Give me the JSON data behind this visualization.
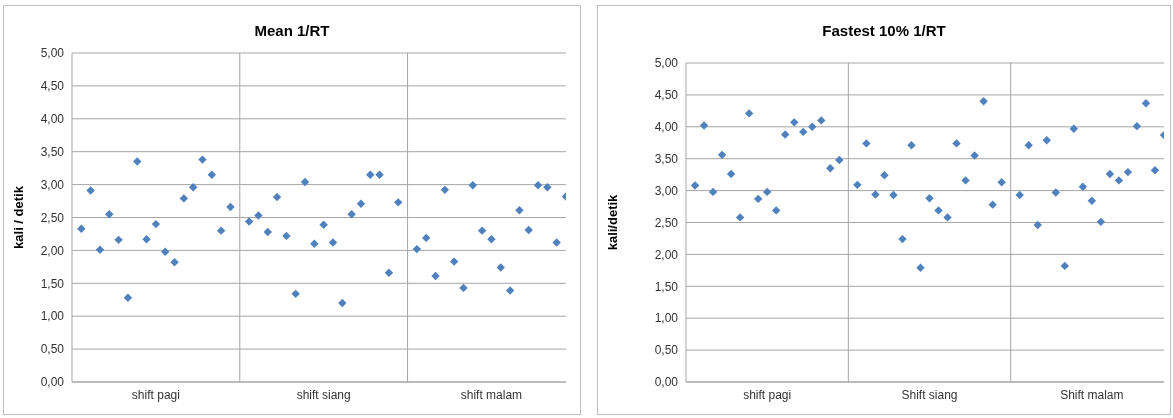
{
  "chart_data": [
    {
      "type": "scatter",
      "title": "Mean 1/RT",
      "ylabel": "kali / detik",
      "categories": [
        null,
        null,
        null,
        null,
        null,
        null,
        null,
        null,
        "shift pagi",
        null,
        null,
        null,
        null,
        null,
        null,
        null,
        null,
        null,
        null,
        null,
        null,
        null,
        null,
        null,
        null,
        null,
        "shift siang",
        null,
        null,
        null,
        null,
        null,
        null,
        null,
        null,
        null,
        null,
        null,
        null,
        null,
        null,
        null,
        null,
        null,
        "shift malam",
        null,
        null,
        null,
        null,
        null,
        null,
        null,
        null
      ],
      "series": [
        {
          "color": "#4f81bd",
          "values": [
            2.33,
            2.91,
            2.01,
            2.55,
            2.16,
            1.28,
            3.35,
            2.17,
            2.4,
            1.98,
            1.82,
            2.79,
            2.96,
            3.38,
            3.15,
            2.3,
            2.66,
            null,
            2.44,
            2.53,
            2.28,
            2.81,
            2.22,
            1.34,
            3.04,
            2.1,
            2.39,
            2.12,
            1.2,
            2.55,
            2.71,
            3.15,
            3.15,
            1.66,
            2.73,
            null,
            2.02,
            2.19,
            1.61,
            2.92,
            1.83,
            1.43,
            2.99,
            2.3,
            2.17,
            1.74,
            1.39,
            2.61,
            2.31,
            2.99,
            2.96,
            2.12,
            2.82
          ]
        }
      ],
      "ylim": [
        0,
        5
      ],
      "yticks": [
        {
          "value": 0,
          "label": "0,00"
        },
        {
          "value": 0.5,
          "label": "0,50"
        },
        {
          "value": 1,
          "label": "1,00"
        },
        {
          "value": 1.5,
          "label": "1,50"
        },
        {
          "value": 2,
          "label": "2,00"
        },
        {
          "value": 2.5,
          "label": "2,50"
        },
        {
          "value": 3,
          "label": "3,00"
        },
        {
          "value": 3.5,
          "label": "3,50"
        },
        {
          "value": 4,
          "label": "4,00"
        },
        {
          "value": 4.5,
          "label": "4,50"
        },
        {
          "value": 5,
          "label": "5,00"
        }
      ],
      "grid": true,
      "marker": "diamond"
    },
    {
      "type": "scatter",
      "title": "Fastest 10% 1/RT",
      "ylabel": "kali/detik",
      "categories": [
        null,
        null,
        null,
        null,
        null,
        null,
        null,
        null,
        "shift pagi",
        null,
        null,
        null,
        null,
        null,
        null,
        null,
        null,
        null,
        null,
        null,
        null,
        null,
        null,
        null,
        null,
        null,
        "Shift siang",
        null,
        null,
        null,
        null,
        null,
        null,
        null,
        null,
        null,
        null,
        null,
        null,
        null,
        null,
        null,
        null,
        null,
        "Shift malam",
        null,
        null,
        null,
        null,
        null,
        null,
        null,
        null
      ],
      "series": [
        {
          "color": "#4f81bd",
          "values": [
            3.08,
            4.02,
            2.98,
            3.56,
            3.26,
            2.58,
            4.21,
            2.87,
            2.98,
            2.69,
            3.88,
            4.07,
            3.92,
            4.0,
            4.1,
            3.35,
            3.48,
            null,
            3.09,
            3.74,
            2.94,
            3.24,
            2.93,
            2.24,
            3.71,
            1.79,
            2.88,
            2.69,
            2.58,
            3.74,
            3.16,
            3.55,
            4.4,
            2.78,
            3.13,
            null,
            2.93,
            3.71,
            2.46,
            3.79,
            2.97,
            1.82,
            3.97,
            3.06,
            2.84,
            2.51,
            3.26,
            3.16,
            3.29,
            4.01,
            4.37,
            3.32,
            3.87
          ]
        }
      ],
      "ylim": [
        0,
        5
      ],
      "yticks": [
        {
          "value": 0,
          "label": "0,00"
        },
        {
          "value": 0.5,
          "label": "0,50"
        },
        {
          "value": 1,
          "label": "1,00"
        },
        {
          "value": 1.5,
          "label": "1,50"
        },
        {
          "value": 2,
          "label": "2,00"
        },
        {
          "value": 2.5,
          "label": "2,50"
        },
        {
          "value": 3,
          "label": "3,00"
        },
        {
          "value": 3.5,
          "label": "3,50"
        },
        {
          "value": 4,
          "label": "4,00"
        },
        {
          "value": 4.5,
          "label": "4,50"
        },
        {
          "value": 5,
          "label": "5,00"
        }
      ],
      "grid": true,
      "marker": "diamond"
    }
  ]
}
